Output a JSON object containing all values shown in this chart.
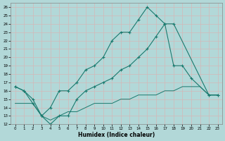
{
  "xlabel": "Humidex (Indice chaleur)",
  "xlim": [
    -0.5,
    23.5
  ],
  "ylim": [
    12,
    26.5
  ],
  "yticks": [
    12,
    13,
    14,
    15,
    16,
    17,
    18,
    19,
    20,
    21,
    22,
    23,
    24,
    25,
    26
  ],
  "xticks": [
    0,
    1,
    2,
    3,
    4,
    5,
    6,
    7,
    8,
    9,
    10,
    11,
    12,
    13,
    14,
    15,
    16,
    17,
    18,
    19,
    20,
    21,
    22,
    23
  ],
  "bg_color": "#b2d8d8",
  "grid_color": "#c8e8e0",
  "line_color": "#1a7a6e",
  "line1_x": [
    0,
    1,
    2,
    3,
    4,
    5,
    6,
    7,
    8,
    9,
    10,
    11,
    12,
    13,
    14,
    15,
    16,
    17,
    18,
    22,
    23
  ],
  "line1_y": [
    16.5,
    16,
    15,
    13,
    14,
    16,
    16,
    17,
    18.5,
    19,
    20,
    22,
    23,
    23,
    24.5,
    26,
    25,
    24,
    24,
    15.5,
    15.5
  ],
  "line2_x": [
    0,
    1,
    2,
    3,
    4,
    5,
    6,
    7,
    8,
    9,
    10,
    11,
    12,
    13,
    14,
    15,
    16,
    17,
    18,
    19,
    20,
    22,
    23
  ],
  "line2_y": [
    16.5,
    16,
    14.5,
    13,
    12,
    13,
    13,
    15,
    16,
    16.5,
    17,
    17.5,
    18.5,
    19,
    20,
    21,
    22.5,
    24,
    19,
    19,
    17.5,
    15.5,
    15.5
  ],
  "line3_x": [
    0,
    1,
    2,
    3,
    4,
    5,
    6,
    7,
    8,
    9,
    10,
    11,
    12,
    13,
    14,
    15,
    16,
    17,
    18,
    19,
    20,
    21,
    22,
    23
  ],
  "line3_y": [
    14.5,
    14.5,
    14.5,
    13,
    12.5,
    13,
    13.5,
    13.5,
    14,
    14.5,
    14.5,
    14.5,
    15,
    15,
    15.5,
    15.5,
    15.5,
    16,
    16,
    16.5,
    16.5,
    16.5,
    15.5,
    15.5
  ]
}
